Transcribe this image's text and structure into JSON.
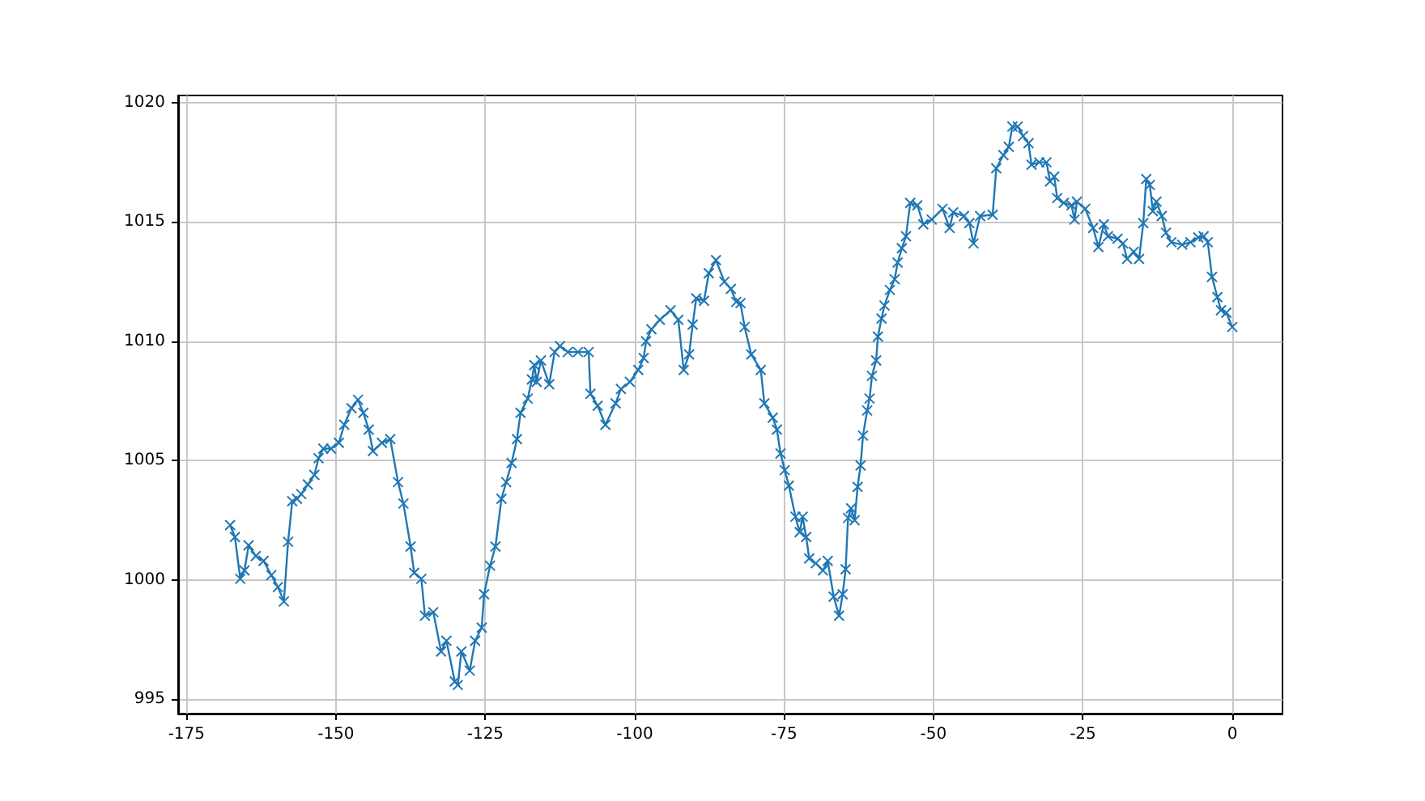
{
  "chart_data": {
    "type": "line",
    "color": "#1f77b4",
    "marker": "cross",
    "line_style": "solid",
    "grid": true,
    "x": [
      -167.7,
      -166.9,
      -166,
      -165.3,
      -164.6,
      -163.4,
      -162.1,
      -160.8,
      -159.7,
      -158.7,
      -158,
      -157.3,
      -156.5,
      -155.8,
      -154.7,
      -153.6,
      -152.9,
      -152.1,
      -150.8,
      -149.5,
      -148.6,
      -147.4,
      -146.3,
      -145.4,
      -144.5,
      -143.8,
      -142.3,
      -140.9,
      -139.6,
      -138.7,
      -137.5,
      -136.9,
      -135.7,
      -135.1,
      -133.7,
      -132.4,
      -131.5,
      -130.1,
      -129.6,
      -129,
      -127.6,
      -126.7,
      -125.6,
      -125.2,
      -124.2,
      -123.3,
      -122.3,
      -121.5,
      -120.6,
      -119.7,
      -119.1,
      -117.9,
      -117.2,
      -116.8,
      -116.4,
      -115.7,
      -114.3,
      -113.4,
      -112.5,
      -111.2,
      -109.5,
      -107.7,
      -107.4,
      -106.2,
      -104.9,
      -103.2,
      -102.3,
      -100.8,
      -99.4,
      -98.5,
      -98.1,
      -97.2,
      -95.8,
      -94,
      -92.7,
      -91.8,
      -90.9,
      -90.3,
      -89.7,
      -88.4,
      -87.6,
      -86.4,
      -85,
      -83.9,
      -83,
      -82.3,
      -81.6,
      -80.5,
      -78.9,
      -78.3,
      -76.9,
      -76.2,
      -75.6,
      -74.9,
      -74.2,
      -73.1,
      -72.4,
      -71.9,
      -71.3,
      -70.8,
      -69.7,
      -68.5,
      -67.7,
      -66.7,
      -65.8,
      -65.2,
      -64.7,
      -64.3,
      -63.8,
      -63.2,
      -62.7,
      -62.2,
      -61.8,
      -61.1,
      -60.7,
      -60.3,
      -59.6,
      -59.3,
      -58.7,
      -58.2,
      -57.3,
      -56.5,
      -56,
      -55.3,
      -54.6,
      -53.9,
      -52.7,
      -51.7,
      -50.3,
      -48.5,
      -47.3,
      -46.7,
      -44.9,
      -44,
      -43.3,
      -42.2,
      -40.1,
      -39.5,
      -38.3,
      -37.4,
      -36.8,
      -35.9,
      -35,
      -34.1,
      -33.6,
      -32.3,
      -31.1,
      -30.5,
      -29.8,
      -29.3,
      -28.2,
      -26.9,
      -26.4,
      -26,
      -24.6,
      -23.3,
      -22.4,
      -21.5,
      -20.8,
      -19.2,
      -18.3,
      -17.6,
      -16.5,
      -15.6,
      -14.9,
      -14.4,
      -13.8,
      -13.3,
      -12.7,
      -11.8,
      -11.1,
      -10.2,
      -8.4,
      -7,
      -5.7,
      -4.8,
      -4.1,
      -3.4,
      -2.5,
      -1.9,
      -1,
      0
    ],
    "values": [
      1002.3,
      1001.8,
      1000.05,
      1000.4,
      1001.45,
      1001,
      1000.8,
      1000.2,
      999.7,
      999.1,
      1001.6,
      1003.3,
      1003.4,
      1003.6,
      1004,
      1004.4,
      1005.1,
      1005.5,
      1005.5,
      1005.75,
      1006.5,
      1007.2,
      1007.55,
      1007,
      1006.3,
      1005.4,
      1005.75,
      1005.9,
      1004.1,
      1003.2,
      1001.4,
      1000.3,
      1000.05,
      998.5,
      998.65,
      997,
      997.45,
      995.75,
      995.6,
      997,
      996.2,
      997.45,
      998,
      999.4,
      1000.6,
      1001.4,
      1003.4,
      1004.1,
      1004.9,
      1005.9,
      1007,
      1007.6,
      1008.4,
      1009,
      1008.3,
      1009.2,
      1008.2,
      1009.55,
      1009.8,
      1009.55,
      1009.55,
      1009.55,
      1007.8,
      1007.3,
      1006.5,
      1007.4,
      1008,
      1008.3,
      1008.8,
      1009.3,
      1010,
      1010.5,
      1010.9,
      1011.3,
      1010.9,
      1008.8,
      1009.45,
      1010.7,
      1011.8,
      1011.7,
      1012.85,
      1013.4,
      1012.5,
      1012.2,
      1011.65,
      1011.6,
      1010.6,
      1009.45,
      1008.8,
      1007.4,
      1006.8,
      1006.3,
      1005.3,
      1004.6,
      1003.95,
      1002.65,
      1002,
      1002.65,
      1001.8,
      1000.9,
      1000.7,
      1000.4,
      1000.8,
      999.3,
      998.5,
      999.4,
      1000.45,
      1002.6,
      1003,
      1002.5,
      1003.9,
      1004.8,
      1006.05,
      1007.1,
      1007.6,
      1008.55,
      1009.2,
      1010.2,
      1010.95,
      1011.5,
      1012.15,
      1012.6,
      1013.3,
      1013.9,
      1014.4,
      1015.8,
      1015.7,
      1014.9,
      1015.1,
      1015.55,
      1014.75,
      1015.4,
      1015.25,
      1014.95,
      1014.1,
      1015.25,
      1015.3,
      1017.25,
      1017.8,
      1018.15,
      1019,
      1019,
      1018.6,
      1018.3,
      1017.4,
      1017.5,
      1017.5,
      1016.7,
      1016.9,
      1016,
      1015.8,
      1015.7,
      1015.1,
      1015.85,
      1015.55,
      1014.75,
      1013.95,
      1014.9,
      1014.4,
      1014.3,
      1014.1,
      1013.45,
      1013.75,
      1013.45,
      1014.95,
      1016.8,
      1016.55,
      1015.45,
      1015.85,
      1015.25,
      1014.55,
      1014.15,
      1014.05,
      1014.15,
      1014.35,
      1014.4,
      1014.15,
      1012.7,
      1011.85,
      1011.3,
      1011.2,
      1010.6
    ],
    "xlim": [
      -176.4,
      8.4
    ],
    "xticks": [
      -175,
      -150,
      -125,
      -100,
      -75,
      -50,
      -25,
      0
    ],
    "ylim": [
      994.4,
      1020.3
    ],
    "yticks": [
      995,
      1000,
      1005,
      1010,
      1015,
      1020
    ]
  }
}
